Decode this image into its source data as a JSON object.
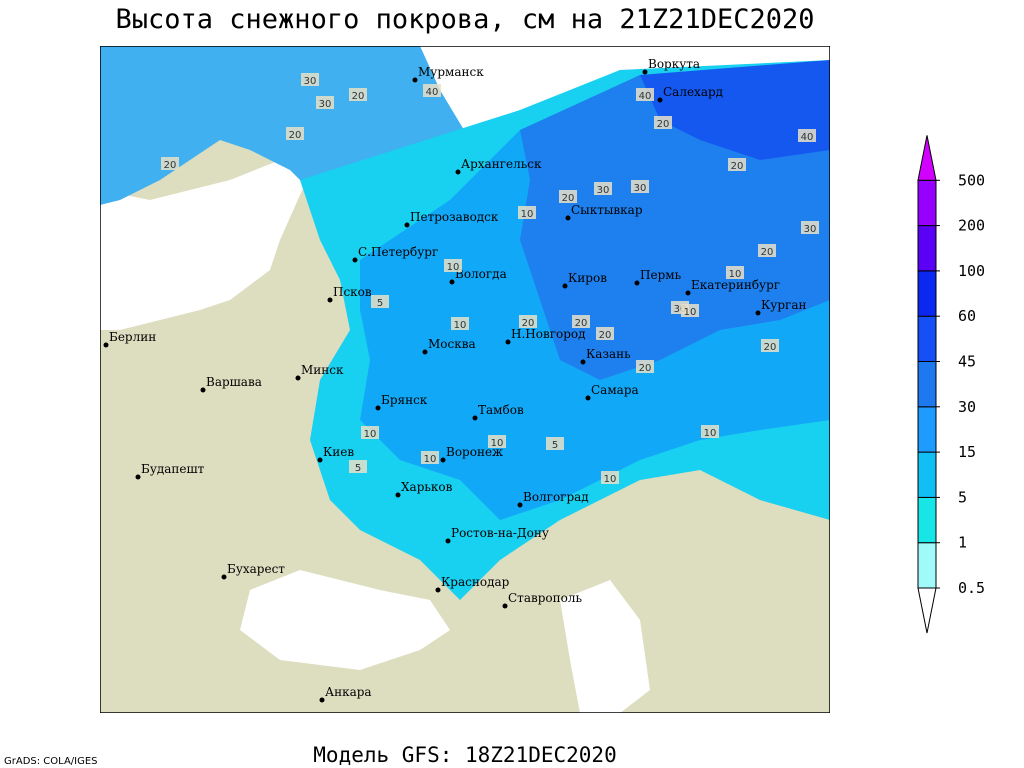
{
  "header": {
    "title": "Высота снежного покрова, см на 21Z21DEC2020"
  },
  "footer": {
    "model": "Модель GFS: 18Z21DEC2020",
    "credit": "GrADS: COLA/IGES"
  },
  "cities": [
    "Мурманск",
    "Воркута",
    "Салехард",
    "Архангельск",
    "Сыктывкар",
    "Петрозаводск",
    "С.Петербург",
    "Вологда",
    "Киров",
    "Пермь",
    "Екатеринбург",
    "Курган",
    "Псков",
    "Берлин",
    "Н.Новгород",
    "Казань",
    "Москва",
    "Минск",
    "Варшава",
    "Самара",
    "Брянск",
    "Тамбов",
    "Киев",
    "Воронеж",
    "Будапешт",
    "Харьков",
    "Волгоград",
    "Ростов-на-Дону",
    "Бухарест",
    "Краснодар",
    "Ставрополь",
    "Анкара"
  ],
  "contour_labels": [
    "30",
    "30",
    "20",
    "20",
    "20",
    "40",
    "40",
    "20",
    "30",
    "40",
    "20",
    "20",
    "30",
    "30",
    "20",
    "30",
    "10",
    "10",
    "10",
    "20",
    "20",
    "20",
    "10",
    "10",
    "10",
    "10",
    "10",
    "5",
    "5",
    "20",
    "20",
    "10",
    "5",
    "10"
  ],
  "legend": {
    "levels": [
      0.5,
      1,
      5,
      15,
      30,
      45,
      60,
      100,
      200,
      500
    ],
    "colors": [
      "#ffffff",
      "#a0fafa",
      "#18e6e6",
      "#10c0f4",
      "#1e9bff",
      "#1e78f0",
      "#1450f5",
      "#0a28f0",
      "#5a00f5",
      "#9600ff",
      "#d200ff"
    ]
  }
}
